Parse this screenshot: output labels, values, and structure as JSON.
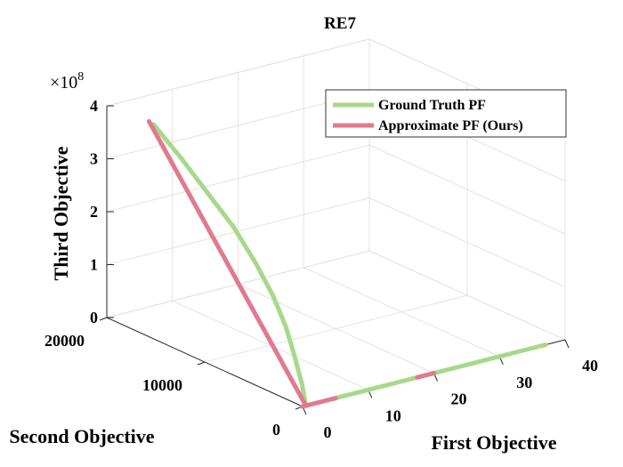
{
  "chart_data": {
    "type": "scatter",
    "projection": "3d",
    "title": "RE7",
    "xlabel": "First Objective",
    "ylabel": "Second Objective",
    "zlabel": "Third Objective",
    "xlim": [
      0,
      40
    ],
    "ylim": [
      0,
      20000
    ],
    "zlim": [
      0,
      400000000
    ],
    "xticks": [
      0,
      10,
      20,
      30,
      40
    ],
    "yticks": [
      0,
      10000,
      20000
    ],
    "zticks": [
      0,
      1,
      2,
      3,
      4
    ],
    "z_exponent_base": "×10",
    "z_exponent_power": "8",
    "grid": true,
    "legend_position": "top-right",
    "series": [
      {
        "name": "Ground Truth PF",
        "color": "#a8d88a",
        "segments": [
          [
            [
              0.5,
              0,
              0
            ],
            [
              0.8,
              600,
              35000000
            ],
            [
              1.0,
              1500,
              80000000
            ],
            [
              1.2,
              2500,
              125000000
            ],
            [
              1.5,
              4000,
              170000000
            ],
            [
              1.8,
              6000,
              215000000
            ],
            [
              2.2,
              8500,
              260000000
            ],
            [
              2.6,
              11500,
              300000000
            ],
            [
              3.0,
              14500,
              340000000
            ],
            [
              3.4,
              17500,
              375000000
            ]
          ],
          [
            [
              0,
              0,
              0
            ],
            [
              10,
              0,
              0
            ],
            [
              20,
              0,
              0
            ],
            [
              30,
              0,
              0
            ],
            [
              37,
              0,
              0
            ]
          ]
        ]
      },
      {
        "name": "Approximate PF (Ours)",
        "color": "#e07a8e",
        "segments": [
          [
            [
              0.5,
              0,
              0
            ],
            [
              1.0,
              2500,
              50000000
            ],
            [
              1.5,
              5000,
              100000000
            ],
            [
              2.0,
              7500,
              150000000
            ],
            [
              2.5,
              10000,
              200000000
            ],
            [
              3.0,
              12500,
              250000000
            ],
            [
              3.5,
              15000,
              300000000
            ],
            [
              4.0,
              17500,
              350000000
            ],
            [
              4.2,
              18500,
              370000000
            ]
          ],
          [
            [
              0,
              0,
              0
            ],
            [
              5,
              0,
              0
            ]
          ],
          [
            [
              17.5,
              0,
              0
            ],
            [
              20,
              0,
              0
            ]
          ]
        ]
      }
    ]
  }
}
